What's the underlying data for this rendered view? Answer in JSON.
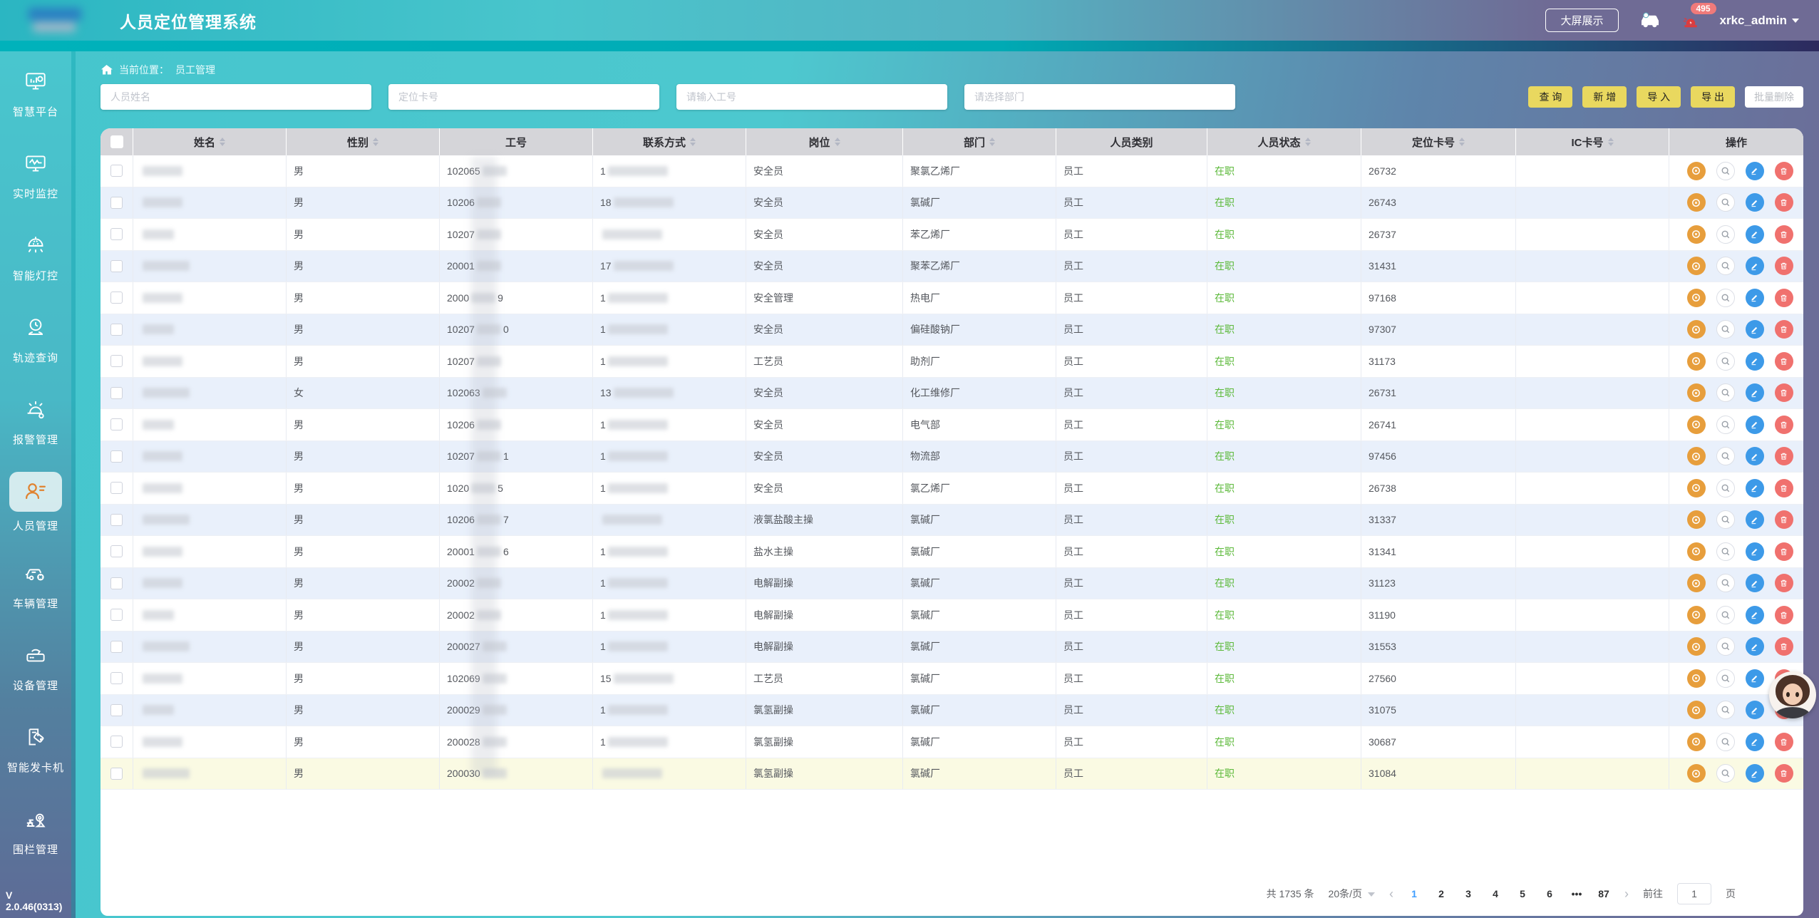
{
  "app": {
    "title": "人员定位管理系统",
    "version": "V 2.0.46(0313)"
  },
  "header": {
    "big_screen_label": "大屏展示",
    "alarm_badge": "495",
    "username": "xrkc_admin"
  },
  "sidebar": {
    "items": [
      {
        "label": "智慧平台",
        "active": false
      },
      {
        "label": "实时监控",
        "active": false
      },
      {
        "label": "智能灯控",
        "active": false
      },
      {
        "label": "轨迹查询",
        "active": false
      },
      {
        "label": "报警管理",
        "active": false
      },
      {
        "label": "人员管理",
        "active": true
      },
      {
        "label": "车辆管理",
        "active": false
      },
      {
        "label": "设备管理",
        "active": false
      },
      {
        "label": "智能发卡机",
        "active": false
      },
      {
        "label": "围栏管理",
        "active": false
      }
    ]
  },
  "breadcrumb": {
    "prefix": "当前位置：",
    "current": "员工管理"
  },
  "filters": {
    "name_placeholder": "人员姓名",
    "card_placeholder": "定位卡号",
    "empno_placeholder": "请输入工号",
    "dept_placeholder": "请选择部门",
    "buttons": {
      "query": "查 询",
      "add": "新 增",
      "import": "导 入",
      "export": "导 出",
      "batch_delete": "批量删除"
    }
  },
  "table": {
    "columns": [
      {
        "label": "",
        "type": "checkbox",
        "sort": false
      },
      {
        "label": "姓名",
        "sort": true
      },
      {
        "label": "性别",
        "sort": true
      },
      {
        "label": "工号",
        "sort": false
      },
      {
        "label": "联系方式",
        "sort": true
      },
      {
        "label": "岗位",
        "sort": true
      },
      {
        "label": "部门",
        "sort": true
      },
      {
        "label": "人员类别",
        "sort": false
      },
      {
        "label": "人员状态",
        "sort": true
      },
      {
        "label": "定位卡号",
        "sort": true
      },
      {
        "label": "IC卡号",
        "sort": true
      },
      {
        "label": "操作",
        "sort": false
      }
    ],
    "action_icons": [
      "collect-card",
      "view",
      "edit",
      "delete"
    ],
    "rows": [
      {
        "gender": "男",
        "empno_prefix": "102065",
        "empno_suffix": "",
        "phone_prefix": "1",
        "position": "安全员",
        "department": "聚氯乙烯厂",
        "category": "员工",
        "status": "在职",
        "card_no": "26732",
        "ic_no": ""
      },
      {
        "gender": "男",
        "empno_prefix": "10206",
        "empno_suffix": "",
        "phone_prefix": "18",
        "position": "安全员",
        "department": "氯碱厂",
        "category": "员工",
        "status": "在职",
        "card_no": "26743",
        "ic_no": ""
      },
      {
        "gender": "男",
        "empno_prefix": "10207",
        "empno_suffix": "",
        "phone_prefix": "",
        "position": "安全员",
        "department": "苯乙烯厂",
        "category": "员工",
        "status": "在职",
        "card_no": "26737",
        "ic_no": ""
      },
      {
        "gender": "男",
        "empno_prefix": "20001",
        "empno_suffix": "",
        "phone_prefix": "17",
        "position": "安全员",
        "department": "聚苯乙烯厂",
        "category": "员工",
        "status": "在职",
        "card_no": "31431",
        "ic_no": ""
      },
      {
        "gender": "男",
        "empno_prefix": "2000",
        "empno_suffix": "9",
        "phone_prefix": "1",
        "position": "安全管理",
        "department": "热电厂",
        "category": "员工",
        "status": "在职",
        "card_no": "97168",
        "ic_no": ""
      },
      {
        "gender": "男",
        "empno_prefix": "10207",
        "empno_suffix": "0",
        "phone_prefix": "1",
        "position": "安全员",
        "department": "偏硅酸钠厂",
        "category": "员工",
        "status": "在职",
        "card_no": "97307",
        "ic_no": ""
      },
      {
        "gender": "男",
        "empno_prefix": "10207",
        "empno_suffix": "",
        "phone_prefix": "1",
        "position": "工艺员",
        "department": "助剂厂",
        "category": "员工",
        "status": "在职",
        "card_no": "31173",
        "ic_no": ""
      },
      {
        "gender": "女",
        "empno_prefix": "102063",
        "empno_suffix": "",
        "phone_prefix": "13",
        "position": "安全员",
        "department": "化工维修厂",
        "category": "员工",
        "status": "在职",
        "card_no": "26731",
        "ic_no": ""
      },
      {
        "gender": "男",
        "empno_prefix": "10206",
        "empno_suffix": "",
        "phone_prefix": "1",
        "position": "安全员",
        "department": "电气部",
        "category": "员工",
        "status": "在职",
        "card_no": "26741",
        "ic_no": ""
      },
      {
        "gender": "男",
        "empno_prefix": "10207",
        "empno_suffix": "1",
        "phone_prefix": "1",
        "position": "安全员",
        "department": "物流部",
        "category": "员工",
        "status": "在职",
        "card_no": "97456",
        "ic_no": ""
      },
      {
        "gender": "男",
        "empno_prefix": "1020",
        "empno_suffix": "5",
        "phone_prefix": "1",
        "position": "安全员",
        "department": "氯乙烯厂",
        "category": "员工",
        "status": "在职",
        "card_no": "26738",
        "ic_no": ""
      },
      {
        "gender": "男",
        "empno_prefix": "10206",
        "empno_suffix": "7",
        "phone_prefix": "",
        "position": "液氯盐酸主操",
        "department": "氯碱厂",
        "category": "员工",
        "status": "在职",
        "card_no": "31337",
        "ic_no": ""
      },
      {
        "gender": "男",
        "empno_prefix": "20001",
        "empno_suffix": "6",
        "phone_prefix": "1",
        "position": "盐水主操",
        "department": "氯碱厂",
        "category": "员工",
        "status": "在职",
        "card_no": "31341",
        "ic_no": ""
      },
      {
        "gender": "男",
        "empno_prefix": "20002",
        "empno_suffix": "",
        "phone_prefix": "1",
        "position": "电解副操",
        "department": "氯碱厂",
        "category": "员工",
        "status": "在职",
        "card_no": "31123",
        "ic_no": ""
      },
      {
        "gender": "男",
        "empno_prefix": "20002",
        "empno_suffix": "",
        "phone_prefix": "1",
        "position": "电解副操",
        "department": "氯碱厂",
        "category": "员工",
        "status": "在职",
        "card_no": "31190",
        "ic_no": ""
      },
      {
        "gender": "男",
        "empno_prefix": "200027",
        "empno_suffix": "",
        "phone_prefix": "1",
        "position": "电解副操",
        "department": "氯碱厂",
        "category": "员工",
        "status": "在职",
        "card_no": "31553",
        "ic_no": ""
      },
      {
        "gender": "男",
        "empno_prefix": "102069",
        "empno_suffix": "",
        "phone_prefix": "15",
        "position": "工艺员",
        "department": "氯碱厂",
        "category": "员工",
        "status": "在职",
        "card_no": "27560",
        "ic_no": ""
      },
      {
        "gender": "男",
        "empno_prefix": "200029",
        "empno_suffix": "",
        "phone_prefix": "1",
        "position": "氯氢副操",
        "department": "氯碱厂",
        "category": "员工",
        "status": "在职",
        "card_no": "31075",
        "ic_no": ""
      },
      {
        "gender": "男",
        "empno_prefix": "200028",
        "empno_suffix": "",
        "phone_prefix": "1",
        "position": "氯氢副操",
        "department": "氯碱厂",
        "category": "员工",
        "status": "在职",
        "card_no": "30687",
        "ic_no": ""
      },
      {
        "gender": "男",
        "empno_prefix": "200030",
        "empno_suffix": "",
        "phone_prefix": "",
        "position": "氯氢副操",
        "department": "氯碱厂",
        "category": "员工",
        "status": "在职",
        "card_no": "31084",
        "ic_no": ""
      }
    ]
  },
  "pagination": {
    "total": "共 1735 条",
    "page_size": "20条/页",
    "pages": [
      "1",
      "2",
      "3",
      "4",
      "5",
      "6",
      "•••",
      "87"
    ],
    "active": "1",
    "goto_label": "前往",
    "goto_value": "1",
    "goto_unit": "页"
  },
  "colors": {
    "accent_teal": "#49c6ce",
    "accent_purple": "#6f6793",
    "button_yellow": "#e9d85f",
    "status_green": "#5cb93a",
    "edit_blue": "#3d9ae8",
    "delete_red": "#f0716e",
    "collect_orange": "#e79e3c"
  }
}
